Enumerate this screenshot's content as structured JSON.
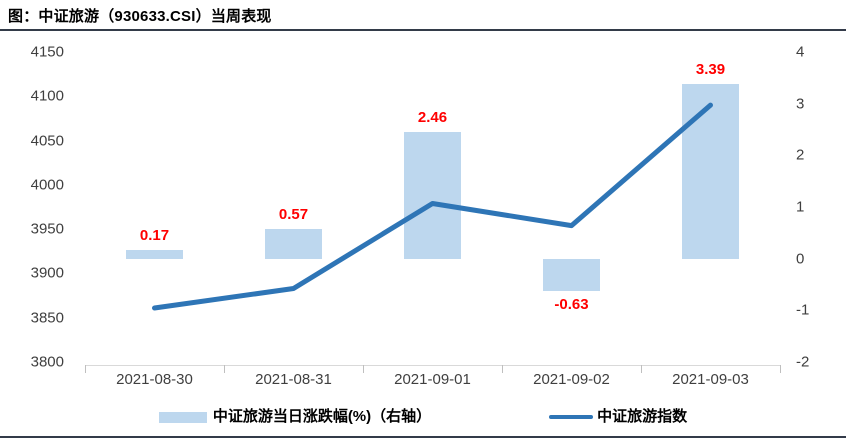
{
  "title": "图：中证旅游（930633.CSI）当周表现",
  "colors": {
    "bar_fill": "#BDD7EE",
    "line": "#2E75B6",
    "value_label": "#FF0000",
    "rule_dark": "#333B49",
    "axis_line": "#D9D9D9",
    "axis_tick": "#BFBFBF",
    "axis_text": "#3F3F3F"
  },
  "chart_data": {
    "type": "bar+line combo",
    "title": "图：中证旅游（930633.CSI）当周表现",
    "categories": [
      "2021-08-30",
      "2021-08-31",
      "2021-09-01",
      "2021-09-02",
      "2021-09-03"
    ],
    "series": [
      {
        "name": "中证旅游当日涨跌幅(%)（右轴）",
        "type": "bar",
        "axis": "right",
        "values": [
          0.17,
          0.57,
          2.46,
          -0.63,
          3.39
        ],
        "value_labels": [
          "0.17",
          "0.57",
          "2.46",
          "-0.63",
          "3.39"
        ]
      },
      {
        "name": "中证旅游指数",
        "type": "line",
        "axis": "left",
        "values": [
          3861,
          3883,
          3979,
          3954,
          4090
        ]
      }
    ],
    "left_axis": {
      "min": 3800,
      "max": 4150,
      "step": 50,
      "ticks": [
        "4150",
        "4100",
        "4050",
        "4000",
        "3950",
        "3900",
        "3850",
        "3800"
      ]
    },
    "right_axis": {
      "min": -2,
      "max": 4,
      "step": 1,
      "ticks": [
        "4",
        "3",
        "2",
        "1",
        "0",
        "-1",
        "-2"
      ]
    },
    "grid": false,
    "legend_position": "bottom"
  }
}
